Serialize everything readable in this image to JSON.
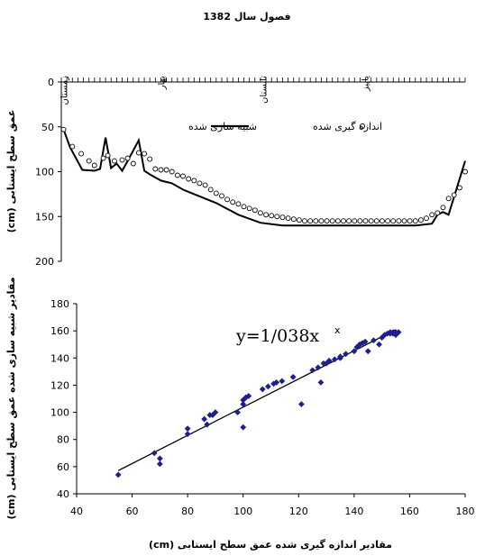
{
  "chart_data": [
    {
      "type": "line",
      "title": "فصول سال 1382",
      "ylabel": "عمق سطح ایستابی (cm)",
      "ylim": [
        0,
        200
      ],
      "y_reversed": true,
      "y_ticks": [
        "0",
        "50",
        "100",
        "150",
        "200"
      ],
      "top_axis_labels": [
        "زمستان",
        "بهار",
        "تابستان",
        "پاییز"
      ],
      "x_domain": [
        0,
        365
      ],
      "season_positions": [
        2,
        90,
        182,
        274
      ],
      "legend_placement": "right",
      "series": [
        {
          "name": "شبیه سازی شده",
          "style": "line",
          "color": "#000000",
          "x": [
            2,
            8,
            19,
            30,
            35,
            40,
            45,
            50,
            55,
            60,
            70,
            75,
            80,
            90,
            100,
            110,
            120,
            140,
            160,
            180,
            200,
            230,
            260,
            290,
            320,
            335,
            340,
            345,
            350,
            365
          ],
          "y": [
            53,
            73,
            98,
            99,
            97,
            62,
            96,
            91,
            99,
            88,
            65,
            99,
            103,
            110,
            113,
            120,
            125,
            135,
            148,
            157,
            160,
            160,
            160,
            160,
            160,
            158,
            148,
            145,
            148,
            88
          ]
        },
        {
          "name": "اندازه گیری شده",
          "style": "marker",
          "color": "#000000",
          "x": [
            2,
            10,
            18,
            25,
            30,
            38,
            42,
            48,
            55,
            60,
            65,
            70,
            75,
            80,
            85,
            90,
            95,
            100,
            105,
            110,
            115,
            120,
            125,
            130,
            135,
            140,
            145,
            150,
            155,
            160,
            165,
            170,
            175,
            180,
            185,
            190,
            195,
            200,
            205,
            210,
            215,
            220,
            225,
            230,
            235,
            240,
            245,
            250,
            255,
            260,
            265,
            270,
            275,
            280,
            285,
            290,
            295,
            300,
            305,
            310,
            315,
            320,
            325,
            330,
            335,
            340,
            345,
            350,
            355,
            360,
            365
          ],
          "y": [
            53,
            72,
            80,
            88,
            93,
            85,
            82,
            88,
            87,
            85,
            91,
            79,
            80,
            86,
            97,
            98,
            98,
            100,
            104,
            105,
            108,
            110,
            113,
            115,
            120,
            124,
            127,
            131,
            134,
            136,
            139,
            141,
            143,
            146,
            148,
            149,
            150,
            151,
            152,
            153,
            154,
            155,
            155,
            155,
            155,
            155,
            155,
            155,
            155,
            155,
            155,
            155,
            155,
            155,
            155,
            155,
            155,
            155,
            155,
            155,
            155,
            155,
            154,
            152,
            148,
            146,
            140,
            130,
            126,
            118,
            100
          ]
        }
      ]
    },
    {
      "type": "scatter",
      "xlabel": "مقادیر اندازه گیری شده عمق سطح ایستابی (cm)",
      "ylabel": "مقادیر شبیه سازی شده عمق سطح ایستابی (cm)",
      "xlim": [
        40,
        180
      ],
      "ylim": [
        40,
        180
      ],
      "x_ticks": [
        "40",
        "60",
        "80",
        "100",
        "120",
        "140",
        "160",
        "180"
      ],
      "y_ticks": [
        "40",
        "60",
        "80",
        "100",
        "120",
        "140",
        "160",
        "180"
      ],
      "trendline": {
        "equation": "y=1/038x",
        "slope": 1.038,
        "x_range": [
          55,
          155
        ]
      },
      "stray_mark": "x",
      "series": [
        {
          "name": "",
          "color": "#1e1e8c",
          "x": [
            55,
            68,
            70,
            70,
            80,
            80,
            86,
            87,
            88,
            89,
            90,
            98,
            100,
            100,
            100,
            101,
            102,
            107,
            109,
            111,
            112,
            114,
            118,
            121,
            125,
            127,
            128,
            129,
            130,
            131,
            133,
            135,
            135,
            137,
            140,
            141,
            142,
            143,
            144,
            145,
            147,
            149,
            150,
            151,
            152,
            153,
            154,
            155,
            155,
            156,
            155,
            154,
            153
          ],
          "y": [
            54,
            70,
            62,
            66,
            84,
            88,
            95,
            91,
            98,
            98,
            100,
            100,
            89,
            106,
            109,
            111,
            112,
            117,
            119,
            121,
            122,
            123,
            126,
            106,
            131,
            133,
            122,
            136,
            136,
            138,
            139,
            140,
            141,
            143,
            145,
            148,
            150,
            151,
            152,
            145,
            153,
            150,
            155,
            157,
            158,
            158,
            158,
            159,
            157,
            159,
            158,
            159,
            159
          ]
        }
      ]
    }
  ]
}
